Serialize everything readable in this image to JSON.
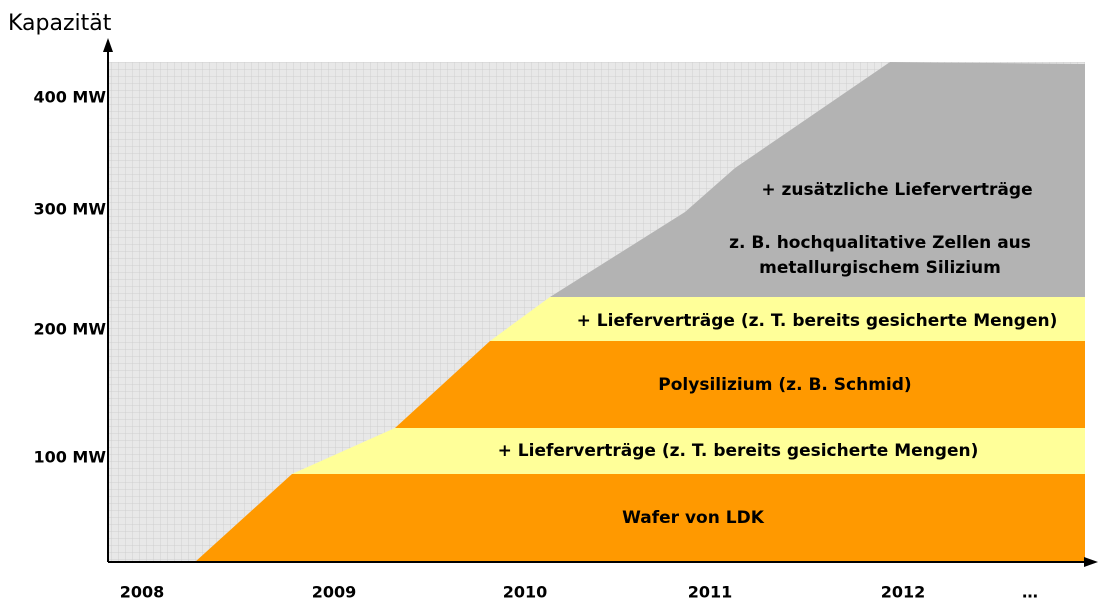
{
  "axis_label": "Kapazität",
  "y_labels": [
    "400 MW",
    "300 MW",
    "200 MW",
    "100 MW"
  ],
  "x_labels": [
    "2008",
    "2009",
    "2010",
    "2011",
    "2012",
    "…"
  ],
  "bands": [
    {
      "lines": [
        "+ zusätzliche Lieferverträge"
      ]
    },
    {
      "lines": [
        "z. B. hochqualitative Zellen aus",
        "metallurgischem Silizium"
      ]
    },
    {
      "lines": [
        "+ Lieferverträge (z. T. bereits gesicherte Mengen)"
      ]
    },
    {
      "lines": [
        "Polysilizium (z. B. Schmid)"
      ]
    },
    {
      "lines": [
        "+ Lieferverträge (z. T. bereits gesicherte Mengen)"
      ]
    },
    {
      "lines": [
        "Wafer von LDK"
      ]
    }
  ]
}
